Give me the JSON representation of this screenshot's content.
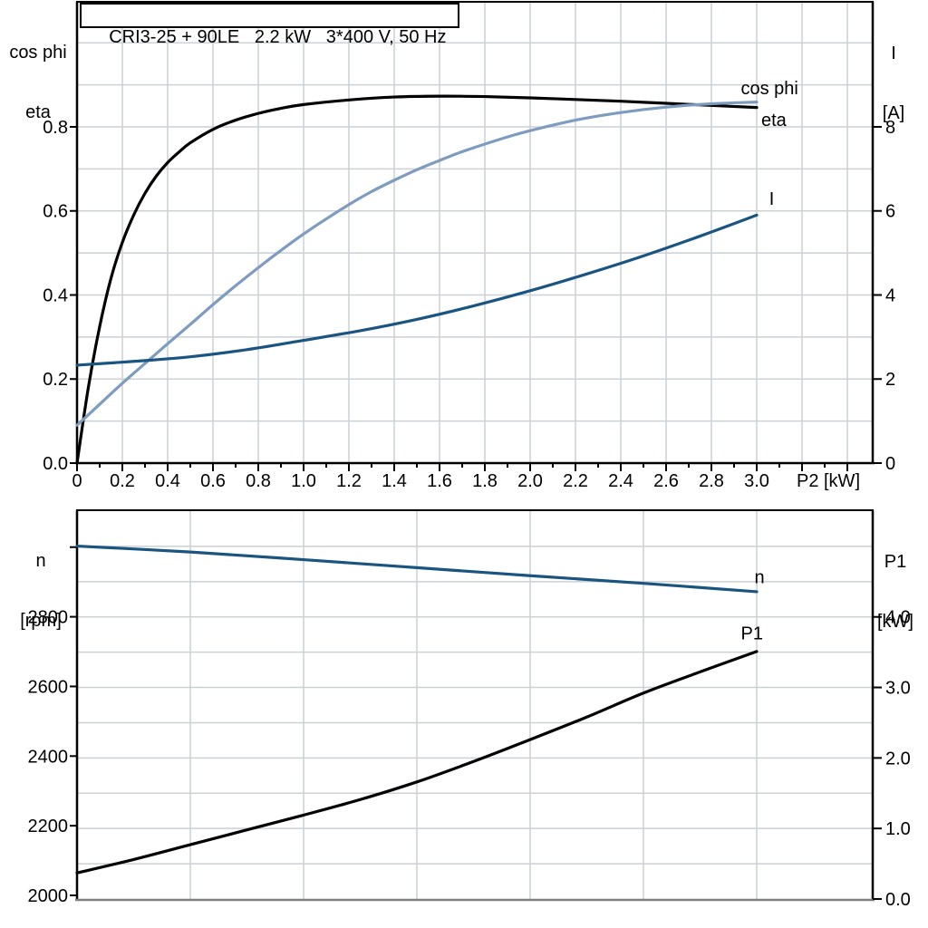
{
  "colors": {
    "curve_black": "#000000",
    "curve_light_blue": "#7d9cbf",
    "curve_dark_blue": "#1a5480",
    "grid": "#ccd1d5",
    "axis": "#000000",
    "bottom_frame": "#7f7f7f",
    "text": "#000000"
  },
  "chart_data": [
    {
      "id": "top-panel",
      "type": "line",
      "title": "CRI3-25 + 90LE   2.2 kW   3*400 V, 50 Hz",
      "x_axis": {
        "label": "P2 [kW]",
        "range": [
          0,
          3.512
        ],
        "major_ticks": [
          0,
          0.2,
          0.4,
          0.6,
          0.8,
          1.0,
          1.2,
          1.4,
          1.6,
          1.8,
          2.0,
          2.2,
          2.4,
          2.6,
          2.8,
          3.0,
          3.2,
          3.4
        ],
        "tick_labels": [
          "0",
          "0.2",
          "0.4",
          "0.6",
          "0.8",
          "1.0",
          "1.2",
          "1.4",
          "1.6",
          "1.8",
          "2.0",
          "2.2",
          "2.4",
          "2.6",
          "2.8",
          "3.0",
          "",
          ""
        ],
        "minor_tick": {
          "from": 0.1,
          "to": 3.4,
          "step": 0.1
        },
        "grid": {
          "from": 0.2,
          "to": 3.4,
          "step": 0.2
        }
      },
      "left_axis": {
        "title_lines": [
          "cos phi",
          "eta"
        ],
        "range": [
          0,
          1.0975
        ],
        "ticks": [
          0,
          0.2,
          0.4,
          0.6,
          0.8
        ],
        "tick_labels": [
          "0.0",
          "0.2",
          "0.4",
          "0.6",
          "0.8"
        ]
      },
      "right_axis": {
        "title_lines": [
          "I",
          "[A]"
        ],
        "range": [
          0,
          10.975
        ],
        "ticks": [
          0,
          2,
          4,
          6,
          8
        ],
        "tick_labels": [
          "0",
          "2",
          "4",
          "6",
          "8"
        ]
      },
      "h_grid": {
        "axis": "left",
        "from": 0.1,
        "to": 1.0,
        "step": 0.1
      },
      "series": [
        {
          "name": "eta",
          "label": "eta",
          "color_key": "curve_black",
          "axis": "left",
          "label_anchor": {
            "x": 3.02,
            "v": 0.802
          },
          "points": [
            [
              0,
              0
            ],
            [
              0.05,
              0.18
            ],
            [
              0.1,
              0.325
            ],
            [
              0.15,
              0.44
            ],
            [
              0.2,
              0.525
            ],
            [
              0.25,
              0.59
            ],
            [
              0.3,
              0.642
            ],
            [
              0.35,
              0.683
            ],
            [
              0.4,
              0.715
            ],
            [
              0.45,
              0.74
            ],
            [
              0.5,
              0.762
            ],
            [
              0.6,
              0.794
            ],
            [
              0.7,
              0.816
            ],
            [
              0.8,
              0.832
            ],
            [
              0.9,
              0.844
            ],
            [
              1.0,
              0.853
            ],
            [
              1.2,
              0.864
            ],
            [
              1.4,
              0.871
            ],
            [
              1.6,
              0.873
            ],
            [
              1.8,
              0.872
            ],
            [
              2.0,
              0.869
            ],
            [
              2.2,
              0.865
            ],
            [
              2.4,
              0.861
            ],
            [
              2.6,
              0.856
            ],
            [
              2.8,
              0.851
            ],
            [
              3.0,
              0.846
            ]
          ]
        },
        {
          "name": "cos-phi",
          "label": "cos phi",
          "color_key": "curve_light_blue",
          "axis": "left",
          "label_anchor": {
            "x": 2.93,
            "v": 0.878
          },
          "points": [
            [
              0,
              0.09
            ],
            [
              0.1,
              0.14
            ],
            [
              0.2,
              0.19
            ],
            [
              0.3,
              0.237
            ],
            [
              0.4,
              0.284
            ],
            [
              0.5,
              0.33
            ],
            [
              0.6,
              0.377
            ],
            [
              0.7,
              0.422
            ],
            [
              0.8,
              0.465
            ],
            [
              0.9,
              0.506
            ],
            [
              1.0,
              0.545
            ],
            [
              1.1,
              0.581
            ],
            [
              1.2,
              0.615
            ],
            [
              1.3,
              0.646
            ],
            [
              1.4,
              0.673
            ],
            [
              1.5,
              0.698
            ],
            [
              1.6,
              0.72
            ],
            [
              1.7,
              0.741
            ],
            [
              1.8,
              0.759
            ],
            [
              1.9,
              0.776
            ],
            [
              2.0,
              0.791
            ],
            [
              2.2,
              0.816
            ],
            [
              2.4,
              0.834
            ],
            [
              2.6,
              0.847
            ],
            [
              2.8,
              0.855
            ],
            [
              3.0,
              0.859
            ]
          ]
        },
        {
          "name": "I",
          "label": "I",
          "color_key": "curve_dark_blue",
          "axis": "right",
          "label_anchor": {
            "x": 3.055,
            "v": 6.14
          },
          "points": [
            [
              0,
              2.33
            ],
            [
              0.25,
              2.42
            ],
            [
              0.5,
              2.53
            ],
            [
              0.75,
              2.7
            ],
            [
              1.0,
              2.92
            ],
            [
              1.25,
              3.15
            ],
            [
              1.5,
              3.42
            ],
            [
              1.75,
              3.74
            ],
            [
              2.0,
              4.1
            ],
            [
              2.25,
              4.5
            ],
            [
              2.5,
              4.93
            ],
            [
              2.75,
              5.4
            ],
            [
              3.0,
              5.9
            ]
          ]
        }
      ]
    },
    {
      "id": "bottom-panel",
      "type": "line",
      "title": "",
      "x_axis": {
        "label": "",
        "range": [
          0,
          3.512
        ],
        "major_ticks": [],
        "tick_labels": [],
        "minor_tick": {
          "from": 0,
          "to": 0,
          "step": 0
        },
        "grid": {
          "from": 0.5,
          "to": 3.0,
          "step": 0.5
        }
      },
      "left_axis": {
        "title_lines": [
          "n",
          "[rpm]"
        ],
        "range": [
          1987,
          3106
        ],
        "ticks": [
          2000,
          2200,
          2400,
          2600,
          2800,
          3000
        ],
        "tick_labels": [
          "2000",
          "2200",
          "2400",
          "2600",
          "2800",
          ""
        ]
      },
      "right_axis": {
        "title_lines": [
          "P1",
          "[kW]"
        ],
        "range": [
          -0.013,
          5.513
        ],
        "ticks": [
          0,
          1,
          2,
          3,
          4
        ],
        "tick_labels": [
          "0.0",
          "1.0",
          "2.0",
          "3.0",
          "4.0"
        ]
      },
      "h_grid": {
        "axis": "right",
        "from": 0.5,
        "to": 5.0,
        "step": 0.5
      },
      "series": [
        {
          "name": "n",
          "label": "n",
          "color_key": "curve_dark_blue",
          "axis": "left",
          "label_anchor": {
            "x": 2.99,
            "v": 2896
          },
          "points": [
            [
              0,
              3003
            ],
            [
              0.5,
              2986
            ],
            [
              1.0,
              2964
            ],
            [
              1.5,
              2941
            ],
            [
              2.0,
              2918
            ],
            [
              2.5,
              2896
            ],
            [
              3.0,
              2872
            ]
          ]
        },
        {
          "name": "P1",
          "label": "P1",
          "color_key": "curve_black",
          "axis": "right",
          "label_anchor": {
            "x": 2.93,
            "v": 3.68
          },
          "points": [
            [
              0,
              0.37
            ],
            [
              0.25,
              0.56
            ],
            [
              0.5,
              0.77
            ],
            [
              0.75,
              0.98
            ],
            [
              1.0,
              1.19
            ],
            [
              1.25,
              1.41
            ],
            [
              1.5,
              1.66
            ],
            [
              1.75,
              1.95
            ],
            [
              2.0,
              2.26
            ],
            [
              2.25,
              2.58
            ],
            [
              2.5,
              2.92
            ],
            [
              2.75,
              3.22
            ],
            [
              3.0,
              3.51
            ]
          ]
        }
      ]
    }
  ]
}
